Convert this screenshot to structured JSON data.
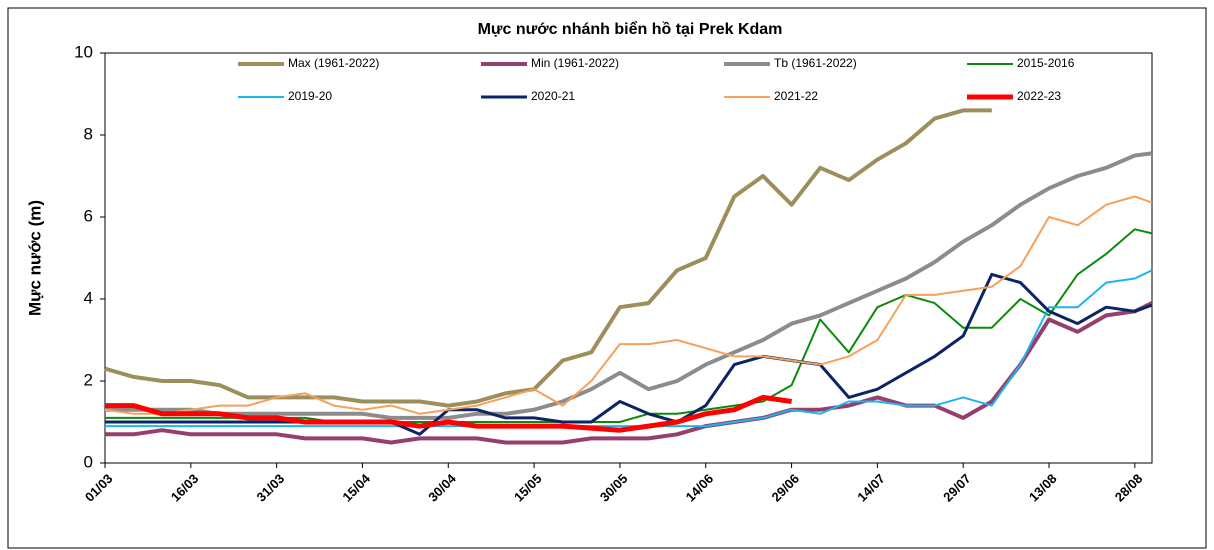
{
  "chart_data": {
    "type": "line",
    "title": "Mực nước nhánh biển hồ tại Prek Kdam",
    "ylabel": "Mực nước (m)",
    "x": [
      "01/03",
      "06/03",
      "11/03",
      "16/03",
      "21/03",
      "26/03",
      "31/03",
      "05/04",
      "10/04",
      "15/04",
      "20/04",
      "25/04",
      "30/04",
      "05/05",
      "10/05",
      "15/05",
      "20/05",
      "25/05",
      "30/05",
      "04/06",
      "09/06",
      "14/06",
      "19/06",
      "24/06",
      "29/06",
      "04/07",
      "09/07",
      "14/07",
      "19/07",
      "24/07",
      "29/07",
      "03/08",
      "08/08",
      "13/08",
      "18/08",
      "23/08",
      "28/08",
      "31/08"
    ],
    "xticks": [
      "01/03",
      "16/03",
      "31/03",
      "15/04",
      "30/04",
      "15/05",
      "30/05",
      "14/06",
      "29/06",
      "14/07",
      "29/07",
      "13/08",
      "28/08"
    ],
    "ylim": [
      0,
      10
    ],
    "yticks": [
      0,
      2,
      4,
      6,
      8,
      10
    ],
    "grid": false,
    "series": [
      {
        "name": "Max (1961-2022)",
        "color": "#9c8f5c",
        "values": [
          2.3,
          2.1,
          2.0,
          2.0,
          1.9,
          1.6,
          1.6,
          1.6,
          1.6,
          1.5,
          1.5,
          1.5,
          1.4,
          1.5,
          1.7,
          1.8,
          2.5,
          2.7,
          3.8,
          3.9,
          4.7,
          5.0,
          6.5,
          7.0,
          6.3,
          7.2,
          6.9,
          7.4,
          7.8,
          8.4,
          8.6,
          8.6,
          null,
          null,
          null,
          null,
          null,
          null
        ]
      },
      {
        "name": "Min (1961-2022)",
        "color": "#953f6f",
        "values": [
          0.7,
          0.7,
          0.8,
          0.7,
          0.7,
          0.7,
          0.7,
          0.6,
          0.6,
          0.6,
          0.5,
          0.6,
          0.6,
          0.6,
          0.5,
          0.5,
          0.5,
          0.6,
          0.6,
          0.6,
          0.7,
          0.9,
          1.0,
          1.1,
          1.3,
          1.3,
          1.4,
          1.6,
          1.4,
          1.4,
          1.1,
          1.5,
          2.4,
          3.5,
          3.2,
          3.6,
          3.7,
          3.9
        ]
      },
      {
        "name": "Tb (1961-2022)",
        "color": "#8c8c8c",
        "values": [
          1.3,
          1.3,
          1.3,
          1.3,
          1.2,
          1.2,
          1.2,
          1.2,
          1.2,
          1.2,
          1.1,
          1.1,
          1.1,
          1.2,
          1.2,
          1.3,
          1.5,
          1.8,
          2.2,
          1.8,
          2.0,
          2.4,
          2.7,
          3.0,
          3.4,
          3.6,
          3.9,
          4.2,
          4.5,
          4.9,
          5.4,
          5.8,
          6.3,
          6.7,
          7.0,
          7.2,
          7.5,
          7.55
        ]
      },
      {
        "name": "2015-2016",
        "color": "#0b8a0b",
        "values": [
          1.1,
          1.1,
          1.1,
          1.1,
          1.1,
          1.1,
          1.1,
          1.1,
          1.0,
          1.0,
          1.0,
          1.0,
          1.0,
          1.0,
          1.0,
          1.0,
          1.0,
          1.0,
          1.0,
          1.2,
          1.2,
          1.3,
          1.4,
          1.5,
          1.9,
          3.5,
          2.7,
          3.8,
          4.1,
          3.9,
          3.3,
          3.3,
          4.0,
          3.6,
          4.6,
          5.1,
          5.7,
          5.6
        ]
      },
      {
        "name": "2019-20",
        "color": "#1eb4f0",
        "values": [
          0.9,
          0.9,
          0.9,
          0.9,
          0.9,
          0.9,
          0.9,
          0.9,
          0.9,
          0.9,
          0.9,
          0.9,
          0.9,
          0.9,
          0.9,
          0.9,
          0.9,
          0.9,
          0.9,
          0.9,
          0.9,
          0.9,
          1.0,
          1.1,
          1.3,
          1.2,
          1.5,
          1.5,
          1.4,
          1.4,
          1.6,
          1.4,
          2.4,
          3.8,
          3.8,
          4.4,
          4.5,
          4.7
        ]
      },
      {
        "name": "2020-21",
        "color": "#0a2466",
        "values": [
          1.0,
          1.0,
          1.0,
          1.0,
          1.0,
          1.0,
          1.0,
          1.0,
          1.0,
          1.0,
          1.0,
          0.7,
          1.3,
          1.3,
          1.1,
          1.1,
          1.0,
          1.0,
          1.5,
          1.2,
          1.0,
          1.4,
          2.4,
          2.6,
          2.5,
          2.4,
          1.6,
          1.8,
          2.2,
          2.6,
          3.1,
          4.6,
          4.4,
          3.7,
          3.4,
          3.8,
          3.7,
          3.85
        ]
      },
      {
        "name": "2021-22",
        "color": "#f7a05a",
        "values": [
          1.3,
          1.2,
          1.2,
          1.3,
          1.4,
          1.4,
          1.6,
          1.7,
          1.4,
          1.3,
          1.4,
          1.2,
          1.3,
          1.4,
          1.6,
          1.8,
          1.4,
          2.0,
          2.9,
          2.9,
          3.0,
          2.8,
          2.6,
          2.6,
          2.5,
          2.4,
          2.6,
          3.0,
          4.1,
          4.1,
          4.2,
          4.3,
          4.8,
          6.0,
          5.8,
          6.3,
          6.5,
          6.35
        ]
      },
      {
        "name": "2022-23",
        "color": "#ff0000",
        "values": [
          1.4,
          1.4,
          1.2,
          1.2,
          1.2,
          1.1,
          1.1,
          1.0,
          1.0,
          1.0,
          1.0,
          0.9,
          1.0,
          0.9,
          0.9,
          0.9,
          0.9,
          0.85,
          0.8,
          0.9,
          1.0,
          1.2,
          1.3,
          1.6,
          1.5,
          null,
          null,
          null,
          null,
          null,
          null,
          null,
          null,
          null,
          null,
          null,
          null,
          null
        ]
      }
    ]
  }
}
